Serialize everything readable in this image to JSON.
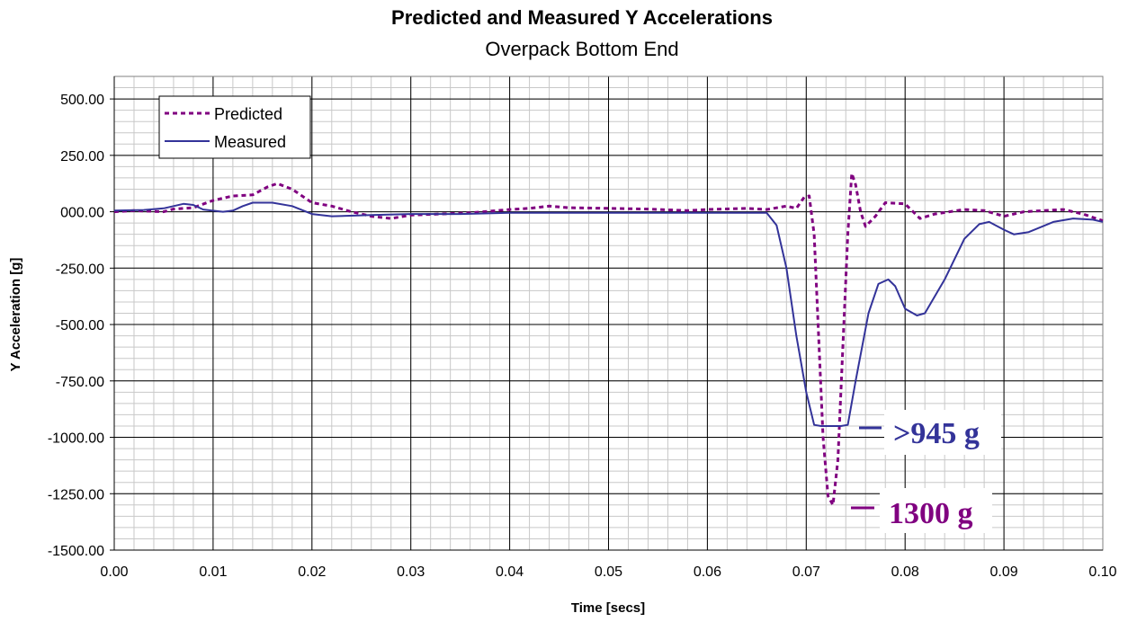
{
  "chart_data": {
    "type": "line",
    "title": "Predicted and Measured Y Accelerations",
    "subtitle": "Overpack Bottom End",
    "xlabel": "Time [secs]",
    "ylabel": "Y Acceleration [g]",
    "xlim": [
      0,
      0.1
    ],
    "ylim": [
      -1500,
      600
    ],
    "x_ticks": [
      "0.00",
      "0.01",
      "0.02",
      "0.03",
      "0.04",
      "0.05",
      "0.06",
      "0.07",
      "0.08",
      "0.09",
      "0.10"
    ],
    "y_ticks": [
      "500.00",
      "250.00",
      "000.00",
      "-250.00",
      "-500.00",
      "-750.00",
      "-1000.00",
      "-1250.00",
      "-1500.00"
    ],
    "grid": true,
    "legend_position": "top-left",
    "series": [
      {
        "name": "Predicted",
        "color": "#800080",
        "style": "dashed",
        "points": [
          [
            0,
            0
          ],
          [
            0.002,
            5
          ],
          [
            0.005,
            0
          ],
          [
            0.006,
            12
          ],
          [
            0.008,
            18
          ],
          [
            0.01,
            50
          ],
          [
            0.012,
            70
          ],
          [
            0.014,
            75
          ],
          [
            0.0155,
            110
          ],
          [
            0.0165,
            125
          ],
          [
            0.018,
            100
          ],
          [
            0.02,
            40
          ],
          [
            0.022,
            25
          ],
          [
            0.024,
            0
          ],
          [
            0.026,
            -20
          ],
          [
            0.028,
            -30
          ],
          [
            0.03,
            -15
          ],
          [
            0.033,
            -10
          ],
          [
            0.036,
            -5
          ],
          [
            0.04,
            10
          ],
          [
            0.042,
            15
          ],
          [
            0.044,
            25
          ],
          [
            0.046,
            18
          ],
          [
            0.05,
            15
          ],
          [
            0.054,
            12
          ],
          [
            0.058,
            5
          ],
          [
            0.06,
            10
          ],
          [
            0.064,
            15
          ],
          [
            0.066,
            10
          ],
          [
            0.068,
            25
          ],
          [
            0.069,
            15
          ],
          [
            0.0698,
            65
          ],
          [
            0.0703,
            70
          ],
          [
            0.0708,
            -100
          ],
          [
            0.0712,
            -500
          ],
          [
            0.0717,
            -1000
          ],
          [
            0.0722,
            -1260
          ],
          [
            0.0727,
            -1300
          ],
          [
            0.0732,
            -1100
          ],
          [
            0.0737,
            -600
          ],
          [
            0.0742,
            -100
          ],
          [
            0.0746,
            170
          ],
          [
            0.075,
            120
          ],
          [
            0.0755,
            0
          ],
          [
            0.076,
            -65
          ],
          [
            0.077,
            -20
          ],
          [
            0.078,
            40
          ],
          [
            0.08,
            35
          ],
          [
            0.0815,
            -30
          ],
          [
            0.083,
            -10
          ],
          [
            0.086,
            10
          ],
          [
            0.088,
            5
          ],
          [
            0.09,
            -20
          ],
          [
            0.092,
            0
          ],
          [
            0.094,
            5
          ],
          [
            0.096,
            10
          ],
          [
            0.098,
            -10
          ],
          [
            0.1,
            -40
          ]
        ]
      },
      {
        "name": "Measured",
        "color": "#333399",
        "style": "solid",
        "points": [
          [
            0,
            5
          ],
          [
            0.003,
            8
          ],
          [
            0.005,
            15
          ],
          [
            0.007,
            35
          ],
          [
            0.008,
            30
          ],
          [
            0.009,
            10
          ],
          [
            0.011,
            0
          ],
          [
            0.012,
            5
          ],
          [
            0.013,
            25
          ],
          [
            0.014,
            40
          ],
          [
            0.016,
            40
          ],
          [
            0.018,
            25
          ],
          [
            0.02,
            -10
          ],
          [
            0.022,
            -20
          ],
          [
            0.026,
            -15
          ],
          [
            0.03,
            -10
          ],
          [
            0.035,
            -10
          ],
          [
            0.04,
            -5
          ],
          [
            0.05,
            -5
          ],
          [
            0.06,
            -5
          ],
          [
            0.066,
            -5
          ],
          [
            0.067,
            -60
          ],
          [
            0.068,
            -250
          ],
          [
            0.069,
            -550
          ],
          [
            0.07,
            -800
          ],
          [
            0.0708,
            -945
          ],
          [
            0.0715,
            -950
          ],
          [
            0.0735,
            -950
          ],
          [
            0.0742,
            -945
          ],
          [
            0.075,
            -750
          ],
          [
            0.0763,
            -450
          ],
          [
            0.0773,
            -320
          ],
          [
            0.0783,
            -300
          ],
          [
            0.079,
            -330
          ],
          [
            0.08,
            -430
          ],
          [
            0.0812,
            -460
          ],
          [
            0.082,
            -450
          ],
          [
            0.084,
            -300
          ],
          [
            0.086,
            -120
          ],
          [
            0.0875,
            -55
          ],
          [
            0.0885,
            -45
          ],
          [
            0.09,
            -80
          ],
          [
            0.091,
            -100
          ],
          [
            0.0925,
            -90
          ],
          [
            0.095,
            -45
          ],
          [
            0.097,
            -30
          ],
          [
            0.099,
            -35
          ],
          [
            0.1,
            -45
          ]
        ]
      }
    ],
    "annotations": [
      {
        "text": ">945 g",
        "color": "#333399",
        "x": 0.0745,
        "y": -950
      },
      {
        "text": "1300 g",
        "color": "#800080",
        "x": 0.0735,
        "y": -1300
      }
    ]
  }
}
